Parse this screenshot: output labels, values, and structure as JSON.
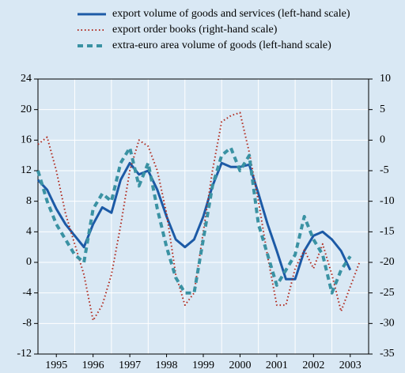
{
  "chart_data": {
    "type": "line",
    "x": [
      1995,
      1995.25,
      1995.5,
      1995.75,
      1996,
      1996.25,
      1996.5,
      1996.75,
      1997,
      1997.25,
      1997.5,
      1997.75,
      1998,
      1998.25,
      1998.5,
      1998.75,
      1999,
      1999.25,
      1999.5,
      1999.75,
      2000,
      2000.25,
      2000.5,
      2000.75,
      2001,
      2001.25,
      2001.5,
      2001.75,
      2002,
      2002.25,
      2002.5,
      2002.75,
      2003,
      2003.25,
      2003.5,
      2003.75
    ],
    "series": [
      {
        "name": "export volume of goods and services (left-hand scale)",
        "color": "#1c5aa6",
        "style": "solid",
        "values": [
          10.8,
          9.5,
          7,
          5,
          3.5,
          2,
          5,
          7.2,
          6.5,
          10.8,
          13,
          11.5,
          12,
          9.5,
          6,
          3,
          2,
          3,
          6,
          10,
          13,
          12.5,
          12.5,
          12.8,
          9,
          5,
          1.5,
          -2.2,
          -2.2,
          1.5,
          3.5,
          4,
          3,
          1.5,
          -1,
          null
        ]
      },
      {
        "name": "export order books (right-hand scale)",
        "color": "#b0281c",
        "style": "dotted",
        "axis": "y2",
        "values": [
          -0.7,
          0.5,
          -5,
          -12,
          -17,
          -22,
          -29.5,
          -27,
          -22,
          -14,
          -5,
          0,
          -1,
          -5,
          -12,
          -22,
          -27,
          -25,
          -15,
          -5,
          3,
          4,
          4.5,
          -2,
          -10,
          -19,
          -27,
          -27,
          -21,
          -18,
          -21,
          -17,
          -22,
          -28,
          -24,
          -20
        ]
      },
      {
        "name": "extra-euro area volume of goods (left-hand scale)",
        "color": "#3a92a3",
        "style": "dashed",
        "values": [
          12,
          8,
          5,
          3,
          1,
          0,
          7,
          9,
          8,
          13,
          15,
          10,
          13,
          7,
          2,
          -2,
          -4,
          -4,
          3,
          10,
          14,
          15,
          12,
          14,
          5,
          1,
          -3,
          -1,
          1,
          6,
          3,
          1,
          -4,
          -1,
          0.8,
          null
        ]
      }
    ],
    "xlim": [
      1995,
      2004
    ],
    "xticks": [
      {
        "value": 1995.5,
        "label": "1995"
      },
      {
        "value": 1996.5,
        "label": "1996"
      },
      {
        "value": 1997.5,
        "label": "1997"
      },
      {
        "value": 1998.5,
        "label": "1998"
      },
      {
        "value": 1999.5,
        "label": "1999"
      },
      {
        "value": 2000.5,
        "label": "2000"
      },
      {
        "value": 2001.5,
        "label": "2001"
      },
      {
        "value": 2002.5,
        "label": "2002"
      },
      {
        "value": 2003.5,
        "label": "2003"
      }
    ],
    "xgrid": [
      1996,
      1997,
      1998,
      1999,
      2000,
      2001,
      2002,
      2003
    ],
    "ylim": [
      -12,
      24
    ],
    "yticks": [
      -12,
      -8,
      -4,
      0,
      4,
      8,
      12,
      16,
      20,
      24
    ],
    "y2lim": [
      -35,
      10
    ],
    "y2ticks": [
      -35,
      -30,
      -25,
      -20,
      -15,
      -10,
      -5,
      0,
      5,
      10
    ],
    "grid": true
  }
}
